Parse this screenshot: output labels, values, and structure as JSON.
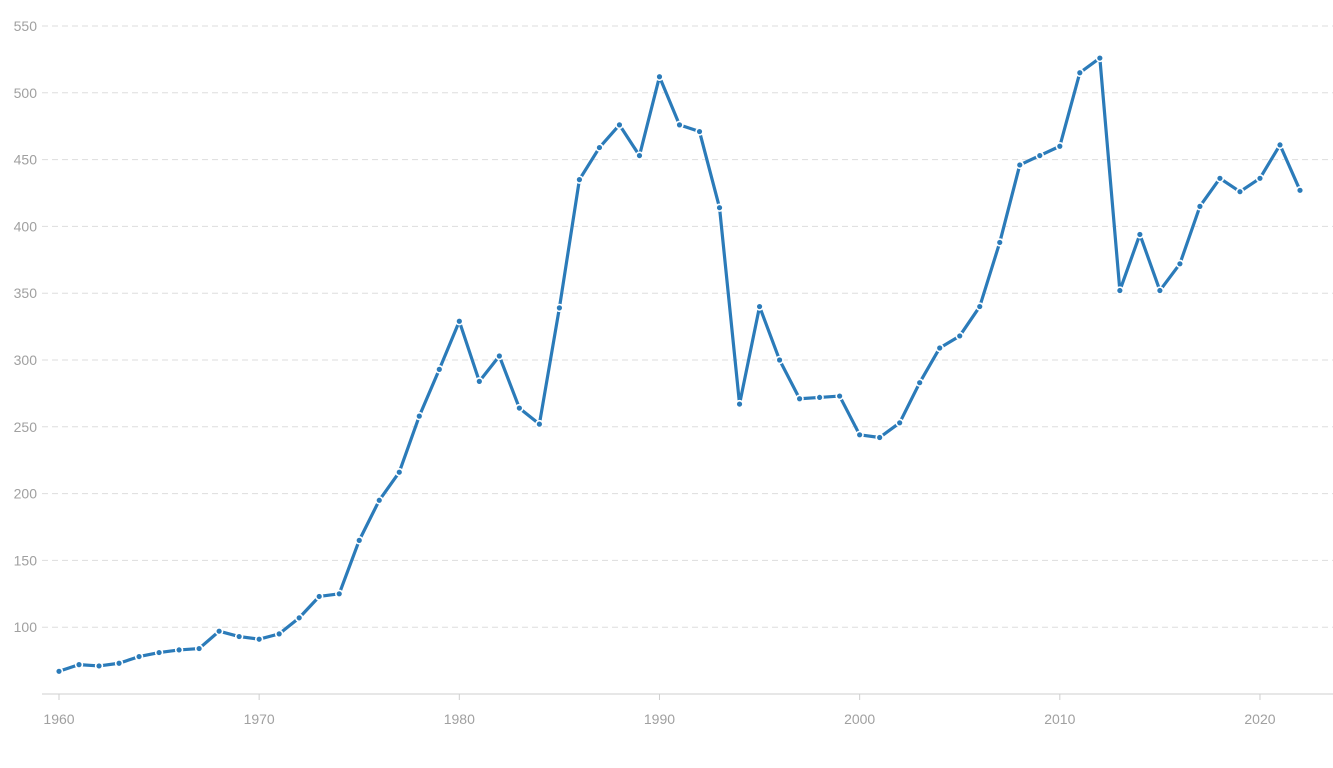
{
  "colors": {
    "series": "#2b7bb9",
    "grid": "#dddddd",
    "tick_text": "#a0a0a0",
    "background": "#ffffff"
  },
  "chart_data": {
    "type": "line",
    "title": "",
    "xlabel": "",
    "ylabel": "",
    "xlim": [
      1960,
      2022
    ],
    "ylim": [
      50,
      550
    ],
    "grid": true,
    "grid_style": "dashed-horizontal",
    "legend": "none",
    "x_ticks": [
      "1960",
      "1970",
      "1980",
      "1990",
      "2000",
      "2010",
      "2020"
    ],
    "y_ticks": [
      "100",
      "150",
      "200",
      "250",
      "300",
      "350",
      "400",
      "450",
      "500",
      "550"
    ],
    "x": [
      1960,
      1961,
      1962,
      1963,
      1964,
      1965,
      1966,
      1967,
      1968,
      1969,
      1970,
      1971,
      1972,
      1973,
      1974,
      1975,
      1976,
      1977,
      1978,
      1979,
      1980,
      1981,
      1982,
      1983,
      1984,
      1985,
      1986,
      1987,
      1988,
      1989,
      1990,
      1991,
      1992,
      1993,
      1994,
      1995,
      1996,
      1997,
      1998,
      1999,
      2000,
      2001,
      2002,
      2003,
      2004,
      2005,
      2006,
      2007,
      2008,
      2009,
      2010,
      2011,
      2012,
      2013,
      2014,
      2015,
      2016,
      2017,
      2018,
      2019,
      2020,
      2021,
      2022
    ],
    "series": [
      {
        "values": [
          67,
          72,
          71,
          73,
          78,
          81,
          83,
          84,
          97,
          93,
          91,
          95,
          107,
          123,
          125,
          165,
          195,
          216,
          258,
          293,
          329,
          284,
          303,
          264,
          252,
          339,
          435,
          459,
          476,
          453,
          512,
          476,
          471,
          414,
          267,
          340,
          300,
          271,
          272,
          273,
          244,
          242,
          253,
          283,
          309,
          318,
          340,
          388,
          446,
          453,
          460,
          515,
          526,
          352,
          394,
          352,
          372,
          415,
          436,
          426,
          436,
          461,
          427
        ]
      }
    ]
  }
}
